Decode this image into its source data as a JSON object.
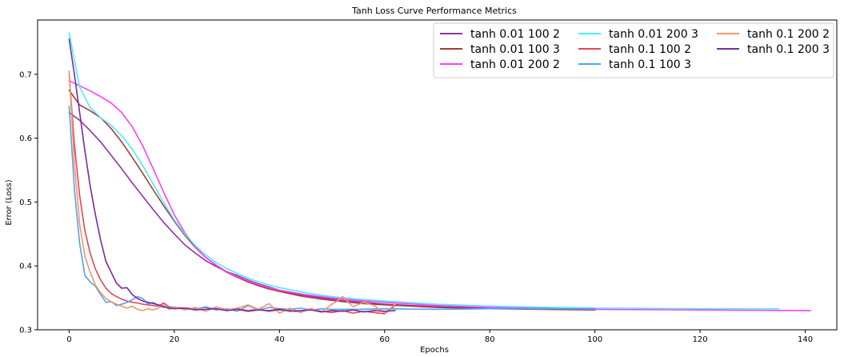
{
  "chart_data": {
    "type": "line",
    "title": "Tanh Loss Curve Performance Metrics",
    "xlabel": "Epochs",
    "ylabel": "Error (Loss)",
    "xlim": [
      -6,
      146
    ],
    "ylim": [
      0.3,
      0.785
    ],
    "xticks": [
      0,
      20,
      40,
      60,
      80,
      100,
      120,
      140
    ],
    "yticks": [
      0.3,
      0.4,
      0.5,
      0.6,
      0.7
    ],
    "grid": false,
    "legend_position": "top-right",
    "legend_columns": 3,
    "series": [
      {
        "name": "tanh 0.01 100 2",
        "color": "#8e35a8",
        "x": [
          0,
          2,
          4,
          6,
          8,
          10,
          12,
          14,
          16,
          18,
          20,
          22,
          24,
          26,
          28,
          30,
          32,
          34,
          36,
          38,
          40,
          44,
          48,
          52,
          56,
          60,
          65,
          70,
          80,
          90,
          100
        ],
        "y": [
          0.64,
          0.628,
          0.612,
          0.594,
          0.573,
          0.552,
          0.53,
          0.509,
          0.488,
          0.468,
          0.45,
          0.433,
          0.42,
          0.408,
          0.399,
          0.391,
          0.385,
          0.378,
          0.372,
          0.367,
          0.362,
          0.355,
          0.35,
          0.346,
          0.343,
          0.34,
          0.338,
          0.336,
          0.334,
          0.333,
          0.332
        ]
      },
      {
        "name": "tanh 0.01 100 3",
        "color": "#a83a3a",
        "x": [
          0,
          2,
          4,
          6,
          8,
          10,
          12,
          14,
          16,
          18,
          20,
          22,
          24,
          26,
          28,
          30,
          32,
          34,
          36,
          38,
          40,
          44,
          48,
          52,
          56,
          60,
          65,
          70,
          80,
          90,
          100
        ],
        "y": [
          0.675,
          0.652,
          0.643,
          0.632,
          0.615,
          0.594,
          0.57,
          0.545,
          0.519,
          0.494,
          0.47,
          0.448,
          0.429,
          0.413,
          0.401,
          0.39,
          0.382,
          0.375,
          0.369,
          0.364,
          0.36,
          0.353,
          0.348,
          0.344,
          0.341,
          0.339,
          0.337,
          0.335,
          0.333,
          0.332,
          0.331
        ]
      },
      {
        "name": "tanh 0.01 200 2",
        "color": "#ff3dff",
        "x": [
          0,
          2,
          4,
          6,
          8,
          10,
          12,
          14,
          16,
          18,
          20,
          22,
          24,
          26,
          28,
          30,
          32,
          34,
          36,
          38,
          40,
          45,
          50,
          55,
          60,
          70,
          80,
          100,
          120,
          141
        ],
        "y": [
          0.69,
          0.682,
          0.674,
          0.665,
          0.655,
          0.64,
          0.618,
          0.588,
          0.552,
          0.515,
          0.48,
          0.452,
          0.43,
          0.413,
          0.401,
          0.391,
          0.383,
          0.377,
          0.371,
          0.366,
          0.362,
          0.355,
          0.35,
          0.346,
          0.343,
          0.338,
          0.335,
          0.332,
          0.331,
          0.33
        ]
      },
      {
        "name": "tanh 0.01 200 3",
        "color": "#4dedf0",
        "x": [
          0,
          2,
          4,
          6,
          8,
          10,
          12,
          14,
          16,
          18,
          20,
          22,
          24,
          26,
          28,
          30,
          32,
          34,
          36,
          38,
          40,
          45,
          50,
          55,
          60,
          70,
          80,
          100,
          120,
          135
        ],
        "y": [
          0.765,
          0.68,
          0.648,
          0.632,
          0.62,
          0.604,
          0.583,
          0.557,
          0.528,
          0.499,
          0.472,
          0.45,
          0.432,
          0.417,
          0.405,
          0.396,
          0.388,
          0.381,
          0.375,
          0.37,
          0.366,
          0.358,
          0.352,
          0.348,
          0.345,
          0.34,
          0.337,
          0.334,
          0.333,
          0.333
        ]
      },
      {
        "name": "tanh 0.1 100 2",
        "color": "#e84455",
        "x": [
          0,
          1,
          2,
          3,
          4,
          5,
          6,
          7,
          8,
          9,
          10,
          11,
          12,
          13,
          14,
          15,
          16,
          17,
          18,
          19,
          20,
          22,
          24,
          26,
          28,
          30,
          32,
          34,
          36,
          38,
          40,
          42,
          44,
          46,
          48,
          50,
          52,
          54,
          56,
          58,
          60,
          62
        ],
        "y": [
          0.7,
          0.59,
          0.51,
          0.455,
          0.42,
          0.395,
          0.378,
          0.365,
          0.357,
          0.352,
          0.348,
          0.345,
          0.343,
          0.342,
          0.34,
          0.339,
          0.338,
          0.337,
          0.342,
          0.336,
          0.335,
          0.334,
          0.333,
          0.335,
          0.332,
          0.331,
          0.333,
          0.33,
          0.332,
          0.329,
          0.331,
          0.33,
          0.328,
          0.333,
          0.329,
          0.327,
          0.33,
          0.326,
          0.329,
          0.327,
          0.325,
          0.338
        ]
      },
      {
        "name": "tanh 0.1 100 3",
        "color": "#4fa3f2",
        "x": [
          0,
          1,
          2,
          3,
          4,
          5,
          6,
          7,
          8,
          9,
          10,
          11,
          12,
          13,
          14,
          15,
          16,
          17,
          18,
          19,
          20,
          22,
          24,
          26,
          28,
          30,
          32,
          34,
          36,
          38,
          40,
          42,
          44,
          46,
          48,
          50,
          55,
          60,
          70,
          80,
          90,
          100
        ],
        "y": [
          0.65,
          0.52,
          0.435,
          0.385,
          0.375,
          0.368,
          0.355,
          0.343,
          0.344,
          0.338,
          0.34,
          0.343,
          0.347,
          0.352,
          0.349,
          0.34,
          0.343,
          0.338,
          0.335,
          0.336,
          0.334,
          0.333,
          0.332,
          0.336,
          0.331,
          0.333,
          0.329,
          0.338,
          0.331,
          0.335,
          0.333,
          0.332,
          0.334,
          0.331,
          0.333,
          0.332,
          0.332,
          0.333,
          0.332,
          0.333,
          0.333,
          0.333
        ]
      },
      {
        "name": "tanh 0.1 200 2",
        "color": "#f5956a",
        "x": [
          0,
          1,
          2,
          3,
          4,
          5,
          6,
          7,
          8,
          9,
          10,
          11,
          12,
          13,
          14,
          15,
          16,
          17,
          18,
          19,
          20,
          22,
          24,
          26,
          28,
          30,
          32,
          34,
          36,
          38,
          40,
          42,
          44,
          46,
          48,
          50,
          51,
          52,
          54,
          56,
          58,
          60,
          62
        ],
        "y": [
          0.705,
          0.56,
          0.465,
          0.415,
          0.39,
          0.37,
          0.358,
          0.349,
          0.344,
          0.34,
          0.337,
          0.334,
          0.337,
          0.332,
          0.33,
          0.333,
          0.331,
          0.334,
          0.339,
          0.332,
          0.336,
          0.331,
          0.335,
          0.329,
          0.336,
          0.331,
          0.334,
          0.339,
          0.332,
          0.341,
          0.326,
          0.334,
          0.327,
          0.333,
          0.328,
          0.34,
          0.345,
          0.352,
          0.336,
          0.343,
          0.338,
          0.326,
          0.34
        ]
      },
      {
        "name": "tanh 0.1 200 3",
        "color": "#7a2a9c",
        "x": [
          0,
          1,
          2,
          3,
          4,
          5,
          6,
          7,
          8,
          9,
          10,
          11,
          12,
          13,
          14,
          15,
          16,
          17,
          18,
          19,
          20,
          22,
          24,
          26,
          28,
          30,
          32,
          34,
          36,
          38,
          40,
          42,
          44,
          46,
          48,
          50,
          52,
          54,
          56,
          58,
          60,
          62
        ],
        "y": [
          0.755,
          0.7,
          0.64,
          0.58,
          0.525,
          0.48,
          0.44,
          0.407,
          0.39,
          0.373,
          0.365,
          0.366,
          0.355,
          0.349,
          0.345,
          0.343,
          0.341,
          0.339,
          0.336,
          0.334,
          0.333,
          0.334,
          0.331,
          0.332,
          0.333,
          0.33,
          0.332,
          0.329,
          0.331,
          0.33,
          0.332,
          0.329,
          0.33,
          0.331,
          0.328,
          0.33,
          0.329,
          0.331,
          0.328,
          0.33,
          0.329,
          0.33
        ]
      }
    ]
  }
}
